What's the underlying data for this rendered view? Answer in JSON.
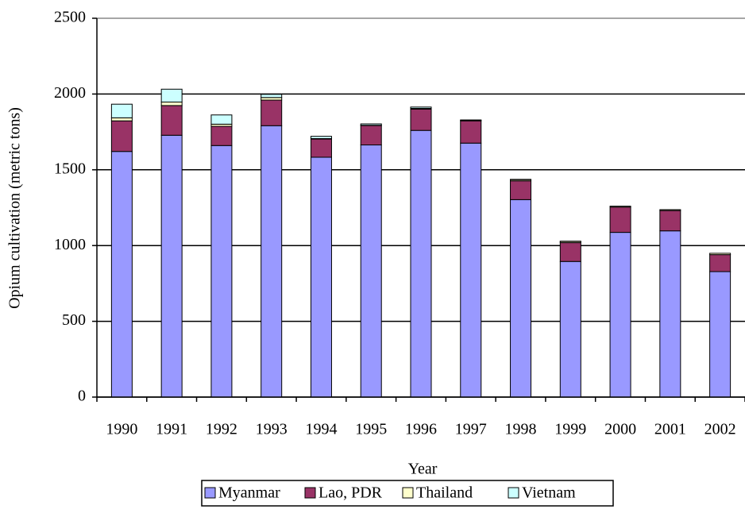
{
  "chart_data": {
    "type": "stacked_bar",
    "x_label": "Year",
    "y_label": "Opium cultivation (metric tons)",
    "categories": [
      "1990",
      "1991",
      "1992",
      "1993",
      "1994",
      "1995",
      "1996",
      "1997",
      "1998",
      "1999",
      "2000",
      "2001",
      "2002"
    ],
    "series": [
      {
        "name": "Myanmar",
        "color": "#9999ff",
        "values": [
          1621,
          1728,
          1660,
          1791,
          1583,
          1664,
          1760,
          1676,
          1303,
          895,
          1087,
          1097,
          828
        ]
      },
      {
        "name": "Lao, PDR",
        "color": "#993366",
        "values": [
          202,
          196,
          127,
          169,
          120,
          128,
          140,
          147,
          124,
          124,
          167,
          134,
          112
        ]
      },
      {
        "name": "Thailand",
        "color": "#ffffcc",
        "values": [
          20,
          23,
          14,
          17,
          3,
          2,
          5,
          4,
          8,
          8,
          6,
          6,
          9
        ]
      },
      {
        "name": "Vietnam",
        "color": "#ccffff",
        "values": [
          90,
          85,
          61,
          21,
          15,
          9,
          9,
          2,
          2,
          2,
          0,
          0,
          0
        ]
      }
    ],
    "ylim": [
      0,
      2500
    ],
    "yticks": [
      0,
      500,
      1000,
      1500,
      2000,
      2500
    ],
    "grid": true,
    "legend": "bottom"
  }
}
